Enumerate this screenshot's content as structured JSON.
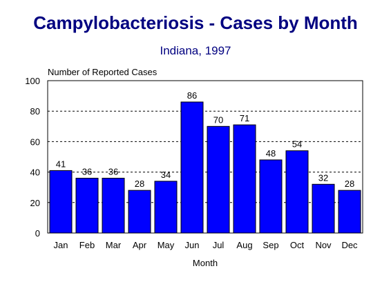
{
  "chart_data": {
    "type": "bar",
    "title": "Campylobacteriosis - Cases by Month",
    "subtitle": "Indiana, 1997",
    "ylabel": "Number of Reported Cases",
    "xlabel": "Month",
    "categories": [
      "Jan",
      "Feb",
      "Mar",
      "Apr",
      "May",
      "Jun",
      "Jul",
      "Aug",
      "Sep",
      "Oct",
      "Nov",
      "Dec"
    ],
    "values": [
      41,
      36,
      36,
      28,
      34,
      86,
      70,
      71,
      48,
      54,
      32,
      28
    ],
    "ylim": [
      0,
      100
    ],
    "yticks": [
      0,
      20,
      40,
      60,
      80,
      100
    ],
    "grid": "dashed horizontal",
    "bar_color": "#0000ff",
    "title_color": "#000080"
  }
}
